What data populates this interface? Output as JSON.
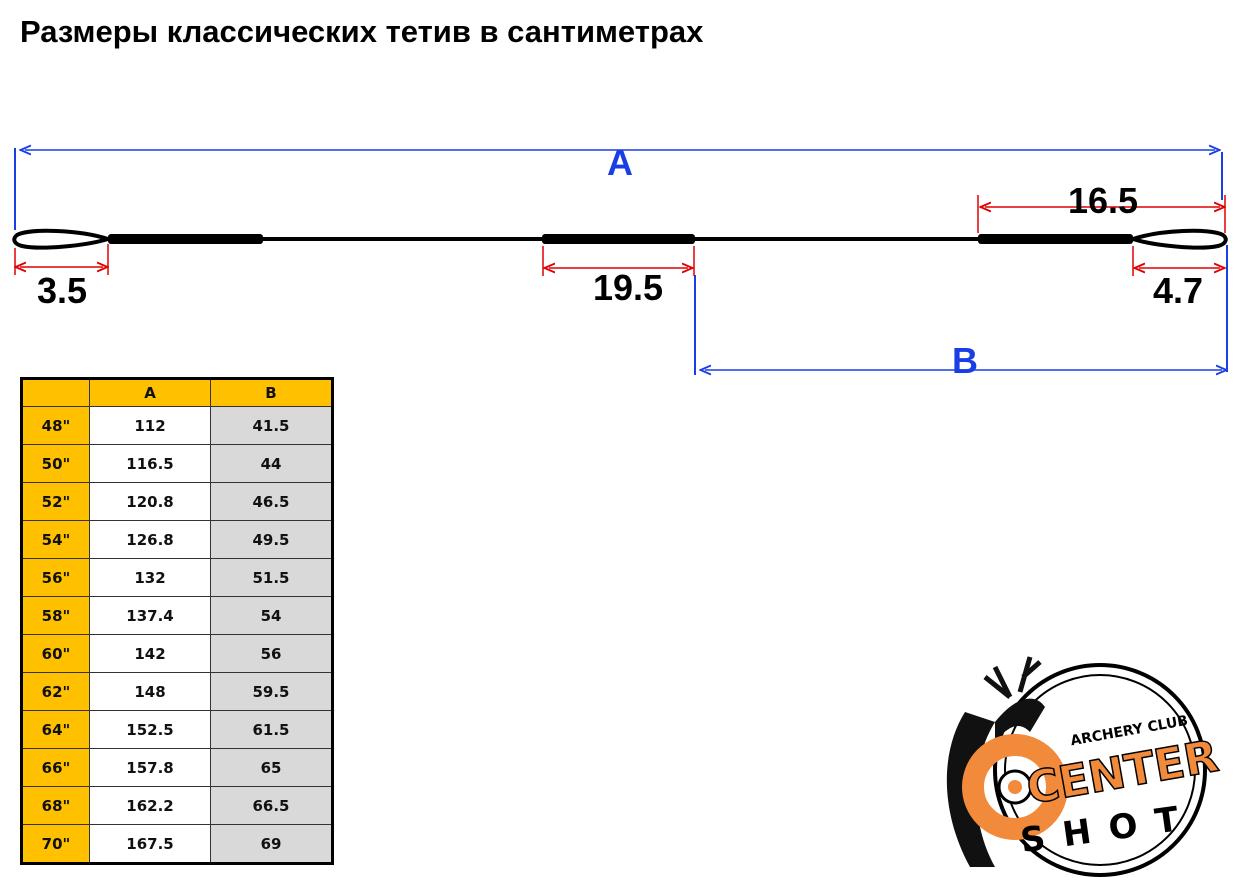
{
  "title": "Размеры классических тетив в сантиметрах",
  "diagram": {
    "labels": {
      "A": "A",
      "B": "B",
      "right_serving": "16.5",
      "left_loop": "3.5",
      "center_serving": "19.5",
      "right_loop": "4.7"
    },
    "colors": {
      "dimension_A_B": "#1a3ee6",
      "dimension_parts": "#e00000",
      "string": "#000000"
    }
  },
  "table": {
    "headers": [
      "",
      "A",
      "B"
    ],
    "rows": [
      [
        "48\"",
        "112",
        "41.5"
      ],
      [
        "50\"",
        "116.5",
        "44"
      ],
      [
        "52\"",
        "120.8",
        "46.5"
      ],
      [
        "54\"",
        "126.8",
        "49.5"
      ],
      [
        "56\"",
        "132",
        "51.5"
      ],
      [
        "58\"",
        "137.4",
        "54"
      ],
      [
        "60\"",
        "142",
        "56"
      ],
      [
        "62\"",
        "148",
        "59.5"
      ],
      [
        "64\"",
        "152.5",
        "61.5"
      ],
      [
        "66\"",
        "157.8",
        "65"
      ],
      [
        "68\"",
        "162.2",
        "66.5"
      ],
      [
        "70\"",
        "167.5",
        "69"
      ]
    ],
    "colors": {
      "header": "#ffc000",
      "col_b": "#d9d9d9"
    }
  },
  "logo": {
    "line1": "ARCHERY CLUB",
    "line2": "CENTER",
    "line3": "SHOT",
    "color": "#f28a3c"
  }
}
